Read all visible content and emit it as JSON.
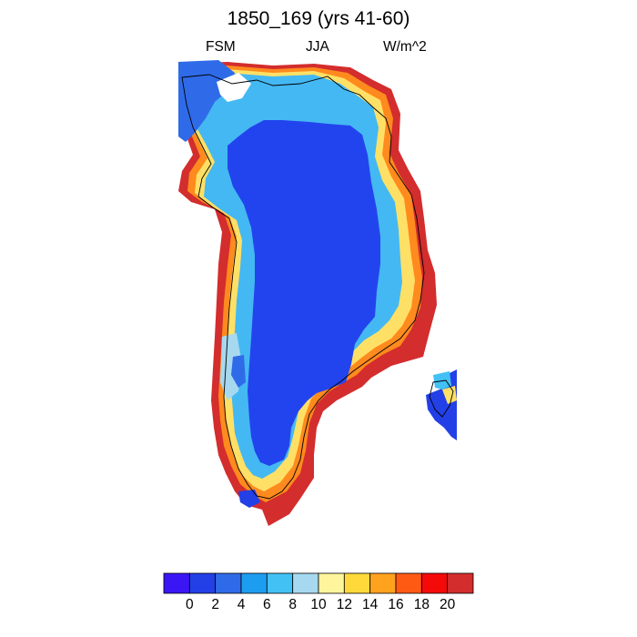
{
  "title": "1850_169 (yrs 41-60)",
  "left_string": "FSM",
  "center_string": "JJA",
  "right_string": "W/m^2",
  "colorbar": {
    "colors": [
      "#3a16f5",
      "#2340e6",
      "#2f6be8",
      "#1d9df0",
      "#42c1f5",
      "#a6d9ef",
      "#fff59c",
      "#ffd93a",
      "#ffa21e",
      "#ff5a14",
      "#f50a0a",
      "#d32d2d"
    ],
    "labels": [
      "0",
      "2",
      "4",
      "6",
      "8",
      "10",
      "12",
      "14",
      "16",
      "18",
      "20"
    ]
  },
  "map": {
    "interior_color": "#2244ee",
    "shape_description": "Greenland ice sheet field with warm coastal margins"
  }
}
